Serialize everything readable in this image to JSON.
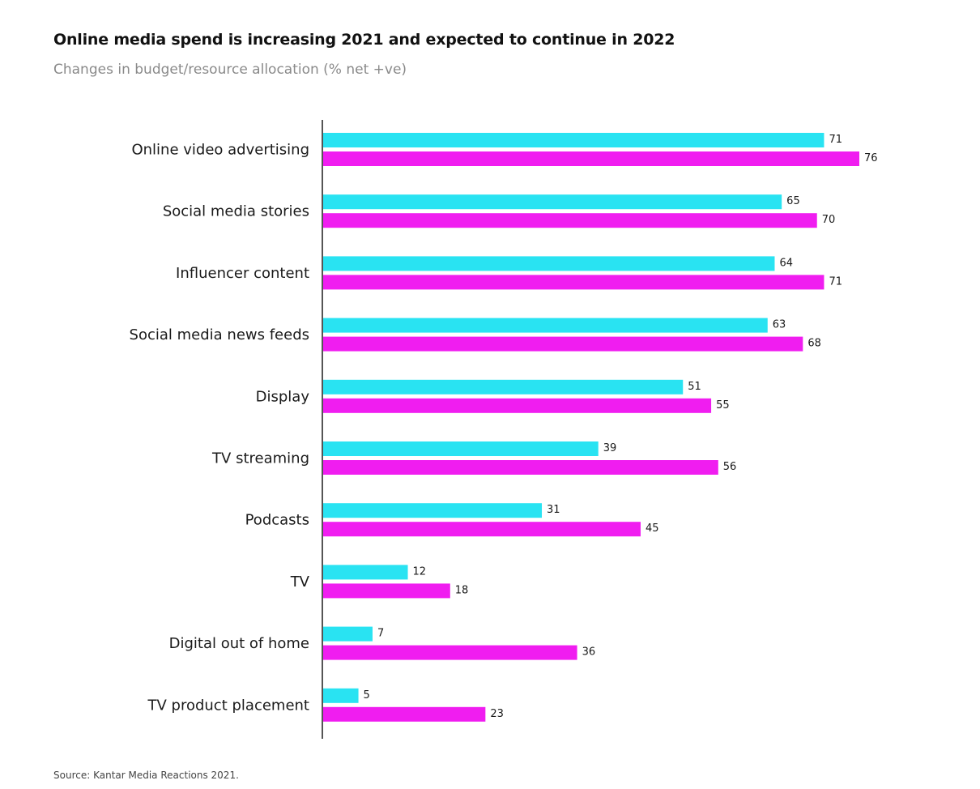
{
  "colors": {
    "series_2021": "#29e3f2",
    "series_2022": "#f01df0",
    "axis": "#555555"
  },
  "chart_data": {
    "type": "bar",
    "orientation": "horizontal",
    "title": "Online media spend is increasing 2021 and expected to continue in 2022",
    "subtitle": "Changes in budget/resource allocation (% net +ve)",
    "source": "Source: Kantar Media Reactions 2021.",
    "categories": [
      "Online video advertising",
      "Social media stories",
      "Influencer content",
      "Social media news feeds",
      "Display",
      "TV streaming",
      "Podcasts",
      "TV",
      "Digital out of home",
      "TV product placement"
    ],
    "series": [
      {
        "color": "#29e3f2",
        "values": [
          71,
          65,
          64,
          63,
          51,
          39,
          31,
          12,
          7,
          5
        ]
      },
      {
        "color": "#f01df0",
        "values": [
          76,
          70,
          71,
          68,
          55,
          56,
          45,
          18,
          36,
          23
        ]
      }
    ],
    "xlim": [
      0,
      76
    ],
    "grid": false,
    "data_labels": true
  }
}
